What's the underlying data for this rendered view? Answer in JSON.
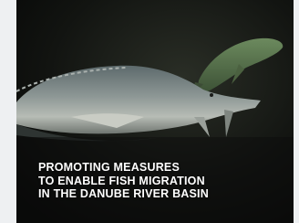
{
  "caption": {
    "lines": [
      "PROMOTING MEASURES",
      "TO ENABLE FISH MIGRATION",
      "IN THE DANUBE RIVER BASIN"
    ]
  }
}
